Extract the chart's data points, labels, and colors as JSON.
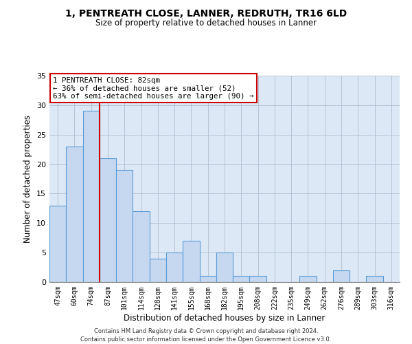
{
  "title": "1, PENTREATH CLOSE, LANNER, REDRUTH, TR16 6LD",
  "subtitle": "Size of property relative to detached houses in Lanner",
  "xlabel": "Distribution of detached houses by size in Lanner",
  "ylabel": "Number of detached properties",
  "bar_labels": [
    "47sqm",
    "60sqm",
    "74sqm",
    "87sqm",
    "101sqm",
    "114sqm",
    "128sqm",
    "141sqm",
    "155sqm",
    "168sqm",
    "182sqm",
    "195sqm",
    "208sqm",
    "222sqm",
    "235sqm",
    "249sqm",
    "262sqm",
    "276sqm",
    "289sqm",
    "303sqm",
    "316sqm"
  ],
  "bar_values": [
    13,
    23,
    29,
    21,
    19,
    12,
    4,
    5,
    7,
    1,
    5,
    1,
    1,
    0,
    0,
    1,
    0,
    2,
    0,
    1,
    0
  ],
  "bar_color": "#c5d8f0",
  "bar_edgecolor": "#5b9bd5",
  "vline_x": 2.5,
  "vline_color": "#cc0000",
  "ylim": [
    0,
    35
  ],
  "yticks": [
    0,
    5,
    10,
    15,
    20,
    25,
    30,
    35
  ],
  "annotation_line1": "1 PENTREATH CLOSE: 82sqm",
  "annotation_line2": "← 36% of detached houses are smaller (52)",
  "annotation_line3": "63% of semi-detached houses are larger (90) →",
  "annotation_box_edgecolor": "#cc0000",
  "footer_line1": "Contains HM Land Registry data © Crown copyright and database right 2024.",
  "footer_line2": "Contains public sector information licensed under the Open Government Licence v3.0.",
  "fig_background_color": "#ffffff",
  "plot_background": "#dce8f5"
}
